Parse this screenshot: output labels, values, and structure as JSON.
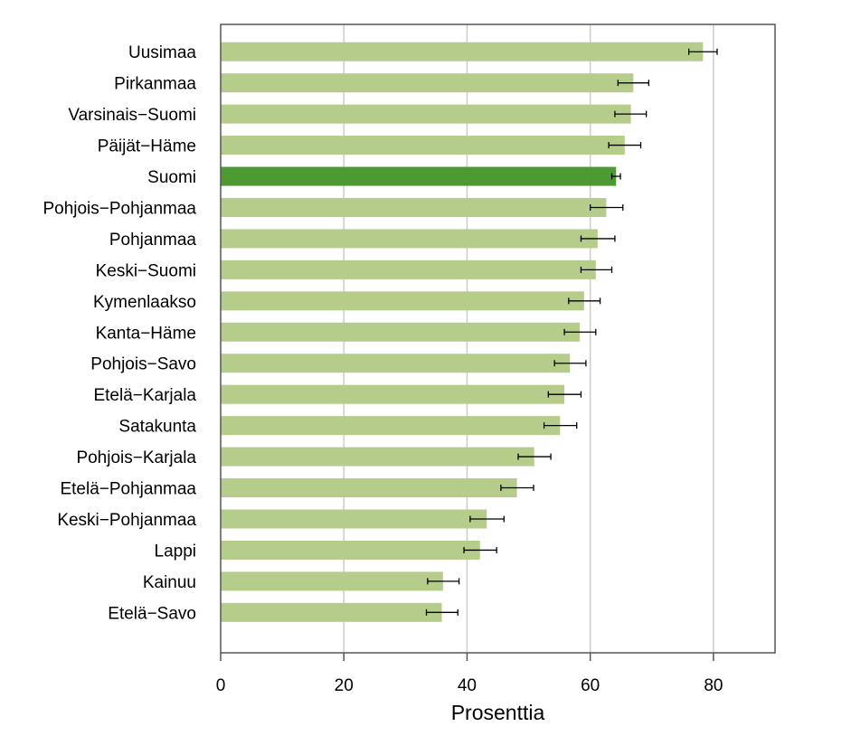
{
  "chart_data": {
    "type": "bar",
    "orientation": "horizontal",
    "title": "",
    "xlabel": "Prosenttia",
    "ylabel": "",
    "xlim": [
      0,
      90
    ],
    "xticks": [
      0,
      20,
      40,
      60,
      80
    ],
    "grid": "vertical",
    "colors": {
      "bar": "#b6cc8a",
      "highlight": "#4e9a32",
      "grid": "#cccccc",
      "frame": "#555555",
      "error": "#000000"
    },
    "highlight": "Suomi",
    "categories": [
      "Uusimaa",
      "Pirkanmaa",
      "Varsinais−Suomi",
      "Päijät−Häme",
      "Suomi",
      "Pohjois−Pohjanmaa",
      "Pohjanmaa",
      "Keski−Suomi",
      "Kymenlaakso",
      "Kanta−Häme",
      "Pohjois−Savo",
      "Etelä−Karjala",
      "Satakunta",
      "Pohjois−Karjala",
      "Etelä−Pohjanmaa",
      "Keski−Pohjanmaa",
      "Lappi",
      "Kainuu",
      "Etelä−Savo"
    ],
    "values": [
      78.3,
      67.0,
      66.6,
      65.6,
      64.2,
      62.6,
      61.2,
      60.9,
      59.0,
      58.3,
      56.7,
      55.8,
      55.1,
      50.9,
      48.1,
      43.2,
      42.1,
      36.1,
      35.9
    ],
    "ci_low": [
      76.0,
      64.5,
      64.0,
      63.0,
      63.5,
      60.0,
      58.5,
      58.5,
      56.5,
      55.8,
      54.2,
      53.2,
      52.5,
      48.3,
      45.5,
      40.5,
      39.5,
      33.6,
      33.4
    ],
    "ci_high": [
      80.6,
      69.5,
      69.1,
      68.2,
      64.9,
      65.3,
      64.0,
      63.5,
      61.6,
      60.9,
      59.3,
      58.5,
      57.8,
      53.6,
      50.8,
      46.0,
      44.8,
      38.7,
      38.5
    ]
  }
}
